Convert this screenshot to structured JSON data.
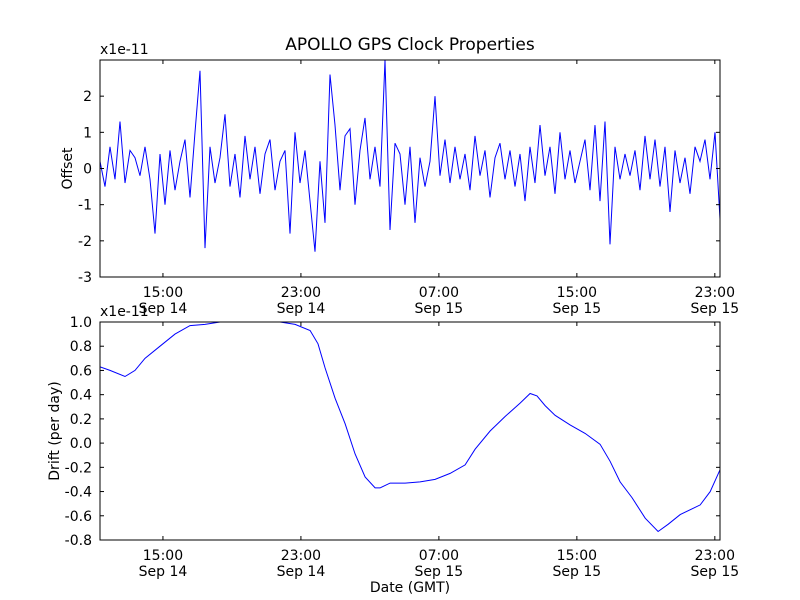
{
  "chart_data": [
    {
      "type": "line",
      "title": "APOLLO GPS Clock Properties",
      "ylabel": "Offset",
      "xlabel": "",
      "offset_text": "x1e-11",
      "ylim": [
        -3,
        3
      ],
      "xlim_hours": [
        11.35,
        47.3
      ],
      "yticks": [
        {
          "v": 2,
          "label": "2"
        },
        {
          "v": 1,
          "label": "1"
        },
        {
          "v": 0,
          "label": "0"
        },
        {
          "v": -1,
          "label": "-1"
        },
        {
          "v": -2,
          "label": "-2"
        },
        {
          "v": -3,
          "label": "-3"
        }
      ],
      "xticks": [
        {
          "h": 15,
          "time": "15:00",
          "date": "Sep 14"
        },
        {
          "h": 23,
          "time": "23:00",
          "date": "Sep 14"
        },
        {
          "h": 31,
          "time": "07:00",
          "date": "Sep 15"
        },
        {
          "h": 39,
          "time": "15:00",
          "date": "Sep 15"
        },
        {
          "h": 47,
          "time": "23:00",
          "date": "Sep 15"
        }
      ],
      "color": "#0000ff",
      "y": [
        0.2,
        -0.5,
        0.6,
        -0.3,
        1.3,
        -0.4,
        0.5,
        0.3,
        -0.2,
        0.6,
        -0.3,
        -1.8,
        0.4,
        -1.0,
        0.5,
        -0.6,
        0.2,
        0.8,
        -0.8,
        1.0,
        2.7,
        -2.2,
        0.6,
        -0.4,
        0.3,
        1.5,
        -0.5,
        0.4,
        -0.8,
        0.9,
        -0.3,
        0.6,
        -0.7,
        0.4,
        0.8,
        -0.6,
        0.2,
        0.5,
        -1.8,
        1.0,
        -0.4,
        0.5,
        -0.9,
        -2.3,
        0.2,
        -1.5,
        2.6,
        1.2,
        -0.6,
        0.9,
        1.1,
        -1.0,
        0.5,
        1.4,
        -0.3,
        0.6,
        -0.5,
        3.0,
        -1.7,
        0.7,
        0.4,
        -1.0,
        0.6,
        -1.5,
        0.3,
        -0.5,
        0.2,
        2.0,
        -0.2,
        0.8,
        -0.4,
        0.6,
        -0.3,
        0.4,
        -0.6,
        0.9,
        -0.2,
        0.5,
        -0.8,
        0.3,
        0.7,
        -0.3,
        0.5,
        -0.5,
        0.4,
        -0.9,
        0.6,
        -0.4,
        1.2,
        -0.2,
        0.6,
        -0.7,
        1.0,
        -0.3,
        0.5,
        -0.4,
        0.2,
        0.8,
        -0.6,
        1.2,
        -0.9,
        1.3,
        -2.1,
        0.6,
        -0.3,
        0.4,
        -0.2,
        0.5,
        -0.6,
        0.9,
        -0.3,
        0.8,
        -0.5,
        0.6,
        -1.2,
        0.5,
        -0.4,
        0.3,
        -0.7,
        0.6,
        0.2,
        0.8,
        -0.3,
        1.0,
        -1.4
      ]
    },
    {
      "type": "line",
      "title": "",
      "ylabel": "Drift (per day)",
      "xlabel": "Date (GMT)",
      "offset_text": "x1e-11",
      "ylim": [
        -0.8,
        1.0
      ],
      "xlim_hours": [
        11.35,
        47.3
      ],
      "yticks": [
        {
          "v": 1.0,
          "label": "1.0"
        },
        {
          "v": 0.8,
          "label": "0.8"
        },
        {
          "v": 0.6,
          "label": "0.6"
        },
        {
          "v": 0.4,
          "label": "0.4"
        },
        {
          "v": 0.2,
          "label": "0.2"
        },
        {
          "v": 0.0,
          "label": "0.0"
        },
        {
          "v": -0.2,
          "label": "-0.2"
        },
        {
          "v": -0.4,
          "label": "-0.4"
        },
        {
          "v": -0.6,
          "label": "-0.6"
        },
        {
          "v": -0.8,
          "label": "-0.8"
        }
      ],
      "xticks": [
        {
          "h": 15,
          "time": "15:00",
          "date": "Sep 14"
        },
        {
          "h": 23,
          "time": "23:00",
          "date": "Sep 14"
        },
        {
          "h": 31,
          "time": "07:00",
          "date": "Sep 15"
        },
        {
          "h": 39,
          "time": "15:00",
          "date": "Sep 15"
        },
        {
          "h": 47,
          "time": "23:00",
          "date": "Sep 15"
        }
      ],
      "color": "#0000ff",
      "points": [
        [
          11.35,
          0.63
        ],
        [
          11.93,
          0.6
        ],
        [
          12.8,
          0.55
        ],
        [
          13.38,
          0.6
        ],
        [
          13.96,
          0.7
        ],
        [
          14.83,
          0.8
        ],
        [
          15.7,
          0.9
        ],
        [
          16.57,
          0.97
        ],
        [
          17.44,
          0.98
        ],
        [
          18.31,
          1.0
        ],
        [
          19.47,
          1.0
        ],
        [
          20.63,
          1.0
        ],
        [
          21.79,
          1.0
        ],
        [
          22.66,
          0.98
        ],
        [
          23.53,
          0.93
        ],
        [
          23.99,
          0.82
        ],
        [
          24.4,
          0.62
        ],
        [
          24.98,
          0.37
        ],
        [
          25.56,
          0.16
        ],
        [
          26.14,
          -0.09
        ],
        [
          26.72,
          -0.28
        ],
        [
          27.3,
          -0.37
        ],
        [
          27.59,
          -0.37
        ],
        [
          28.17,
          -0.33
        ],
        [
          29.04,
          -0.33
        ],
        [
          29.91,
          -0.32
        ],
        [
          30.78,
          -0.3
        ],
        [
          31.65,
          -0.25
        ],
        [
          32.52,
          -0.18
        ],
        [
          33.1,
          -0.05
        ],
        [
          33.97,
          0.1
        ],
        [
          34.84,
          0.22
        ],
        [
          35.71,
          0.33
        ],
        [
          36.29,
          0.41
        ],
        [
          36.69,
          0.39
        ],
        [
          37.16,
          0.31
        ],
        [
          37.74,
          0.23
        ],
        [
          38.61,
          0.15
        ],
        [
          39.48,
          0.08
        ],
        [
          40.35,
          -0.01
        ],
        [
          40.93,
          -0.15
        ],
        [
          41.51,
          -0.32
        ],
        [
          42.2,
          -0.45
        ],
        [
          42.96,
          -0.62
        ],
        [
          43.71,
          -0.73
        ],
        [
          44.29,
          -0.67
        ],
        [
          44.99,
          -0.59
        ],
        [
          46.15,
          -0.51
        ],
        [
          46.73,
          -0.4
        ],
        [
          47.3,
          -0.22
        ]
      ]
    }
  ]
}
